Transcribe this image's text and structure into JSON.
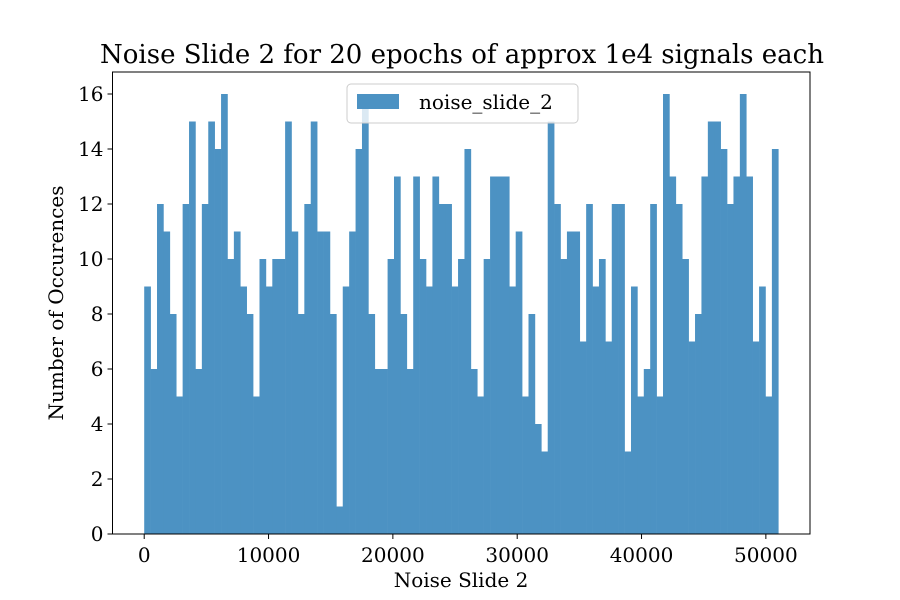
{
  "chart_data": {
    "type": "bar",
    "title": "Noise Slide 2 for 20 epochs of approx 1e4 signals each",
    "xlabel": "Noise Slide 2",
    "ylabel": "Number of Occurences",
    "xlim": [
      -2550,
      53550
    ],
    "ylim": [
      0,
      16.8
    ],
    "x_ticks": [
      0,
      10000,
      20000,
      30000,
      40000,
      50000
    ],
    "y_ticks": [
      0,
      2,
      4,
      6,
      8,
      10,
      12,
      14,
      16
    ],
    "bin_start": 0,
    "bin_end": 51000,
    "grid": false,
    "legend_position": "upper center",
    "bar_color": "#4c92c3",
    "series": [
      {
        "name": "noise_slide_2",
        "values": [
          9,
          6,
          12,
          11,
          8,
          5,
          12,
          15,
          6,
          12,
          15,
          14,
          16,
          10,
          11,
          9,
          8,
          5,
          10,
          9,
          10,
          10,
          15,
          11,
          8,
          12,
          15,
          11,
          11,
          8,
          1,
          9,
          11,
          14,
          16,
          8,
          6,
          6,
          10,
          13,
          8,
          6,
          13,
          10,
          9,
          13,
          12,
          12,
          9,
          10,
          14,
          6,
          5,
          10,
          13,
          13,
          13,
          9,
          11,
          5,
          8,
          4,
          3,
          15,
          12,
          10,
          11,
          11,
          7,
          12,
          9,
          10,
          7,
          12,
          12,
          3,
          9,
          5,
          6,
          12,
          5,
          16,
          13,
          12,
          10,
          7,
          8,
          13,
          15,
          15,
          14,
          12,
          13,
          16,
          13,
          7,
          9,
          5,
          14
        ]
      }
    ]
  }
}
